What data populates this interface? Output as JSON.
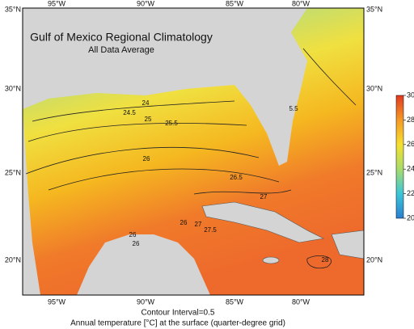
{
  "title": "Gulf of Mexico Regional Climatology",
  "subtitle": "All Data Average",
  "lon_labels": [
    "95°W",
    "90°W",
    "85°W",
    "80°W"
  ],
  "lat_labels": [
    "35°N",
    "30°N",
    "25°N",
    "20°N"
  ],
  "contour_labels": [
    "24",
    "24.5",
    "25",
    "25.5",
    "5.5",
    "26",
    "26.5",
    "27",
    "26",
    "27",
    "27.5",
    "26",
    "26",
    "28"
  ],
  "colorbar": {
    "lim": [
      20,
      30
    ],
    "ticks": [
      20,
      22,
      24,
      26,
      28,
      30
    ]
  },
  "contour_interval": "Contour Interval=0.5",
  "caption": "Annual temperature [°C] at the surface (quarter-degree grid)"
}
